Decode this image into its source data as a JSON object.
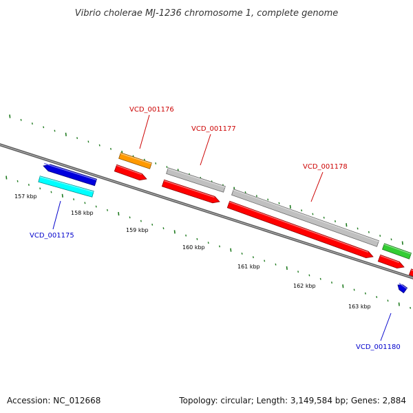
{
  "title": "Vibrio cholerae MJ-1236 chromosome 1, complete genome",
  "footer": {
    "accession": "Accession: NC_012668",
    "summary": "Topology: circular; Length: 3,149,584 bp; Genes: 2,884"
  },
  "colors": {
    "backbone": "#7f7f7f",
    "tick": "#1e7a1e",
    "label_red": "#cc0000",
    "label_blue": "#0000cc",
    "cds_forward": "#ff0000",
    "cds_reverse": "#0000dd",
    "gene_cyan": "#00ffff",
    "gene_orange": "#ff9900",
    "gene_gray": "#c0c0c0",
    "gene_green": "#33cc33"
  },
  "tick_labels": [
    "157 kbp",
    "158 kbp",
    "159 kbp",
    "160 kbp",
    "161 kbp",
    "162 kbp",
    "163 kbp"
  ],
  "gene_labels": [
    {
      "id": "VCD_001175",
      "color": "#0000cc"
    },
    {
      "id": "VCD_001176",
      "color": "#cc0000"
    },
    {
      "id": "VCD_001177",
      "color": "#cc0000"
    },
    {
      "id": "VCD_001178",
      "color": "#cc0000"
    },
    {
      "id": "VCD_001180",
      "color": "#0000cc"
    }
  ]
}
